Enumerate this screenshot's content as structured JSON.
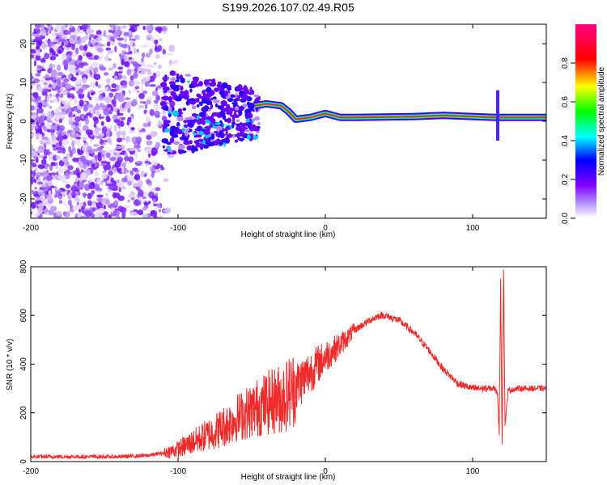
{
  "title": "S199.2026.107.02.49.R05",
  "chart_data": [
    {
      "type": "heatmap",
      "xlabel": "Height of straight line (km)",
      "ylabel": "Frequency (Hz)",
      "xlim": [
        -200,
        150
      ],
      "ylim": [
        -25,
        25
      ],
      "xticks": [
        -200,
        -100,
        0,
        100
      ],
      "xtick_labels": [
        "-200",
        "-100",
        "0",
        "100"
      ],
      "yticks": [
        20,
        10,
        0,
        -10,
        -20
      ],
      "ytick_labels": [
        "20",
        "10",
        "0",
        "-10",
        "-20"
      ],
      "colorbar": {
        "label": "Normalized spectral amplitude",
        "range": [
          0,
          1
        ],
        "ticks": [
          0.0,
          0.2,
          0.4,
          0.6,
          0.8
        ],
        "tick_labels": [
          "0.0",
          "0.2",
          "0.4",
          "0.6",
          "0.8"
        ],
        "colormap": [
          "#ffffff",
          "#8000ff",
          "#0000ff",
          "#00ffff",
          "#00ff00",
          "#ffff00",
          "#ff0000",
          "#ff0080"
        ]
      },
      "carrier_track": [
        {
          "x": -48,
          "y": 4.0
        },
        {
          "x": -40,
          "y": 4.5
        },
        {
          "x": -30,
          "y": 4.0
        },
        {
          "x": -25,
          "y": 2.5
        },
        {
          "x": -20,
          "y": 0.5
        },
        {
          "x": -10,
          "y": 1.0
        },
        {
          "x": 0,
          "y": 2.0
        },
        {
          "x": 10,
          "y": 1.0
        },
        {
          "x": 20,
          "y": 1.0
        },
        {
          "x": 60,
          "y": 1.2
        },
        {
          "x": 80,
          "y": 1.5
        },
        {
          "x": 115,
          "y": 1.0
        },
        {
          "x": 150,
          "y": 1.0
        }
      ]
    },
    {
      "type": "line",
      "xlabel": "Height of straight line (km)",
      "ylabel": "SNR (10 * v/v)",
      "xlim": [
        -200,
        150
      ],
      "ylim": [
        0,
        800
      ],
      "xticks": [
        -200,
        -100,
        0,
        100
      ],
      "xtick_labels": [
        "-200",
        "-100",
        "0",
        "100"
      ],
      "yticks": [
        0,
        200,
        400,
        600,
        800
      ],
      "ytick_labels": [
        "0",
        "200",
        "400",
        "600",
        "800"
      ],
      "color": "#ee2a2a",
      "series": [
        {
          "name": "SNR",
          "x": [
            -200,
            -180,
            -160,
            -140,
            -120,
            -110,
            -100,
            -90,
            -80,
            -70,
            -60,
            -50,
            -40,
            -35,
            -30,
            -25,
            -20,
            -15,
            -10,
            -5,
            0,
            10,
            20,
            30,
            37,
            40,
            50,
            60,
            70,
            80,
            90,
            100,
            110,
            115,
            117,
            118,
            119,
            120,
            121,
            122,
            124,
            130,
            140,
            150
          ],
          "y": [
            20,
            20,
            20,
            20,
            25,
            35,
            50,
            80,
            110,
            140,
            180,
            210,
            240,
            250,
            260,
            280,
            310,
            340,
            370,
            400,
            430,
            480,
            540,
            580,
            600,
            600,
            580,
            530,
            460,
            380,
            320,
            300,
            300,
            300,
            280,
            100,
            750,
            80,
            800,
            150,
            290,
            300,
            300,
            300
          ]
        }
      ]
    }
  ]
}
